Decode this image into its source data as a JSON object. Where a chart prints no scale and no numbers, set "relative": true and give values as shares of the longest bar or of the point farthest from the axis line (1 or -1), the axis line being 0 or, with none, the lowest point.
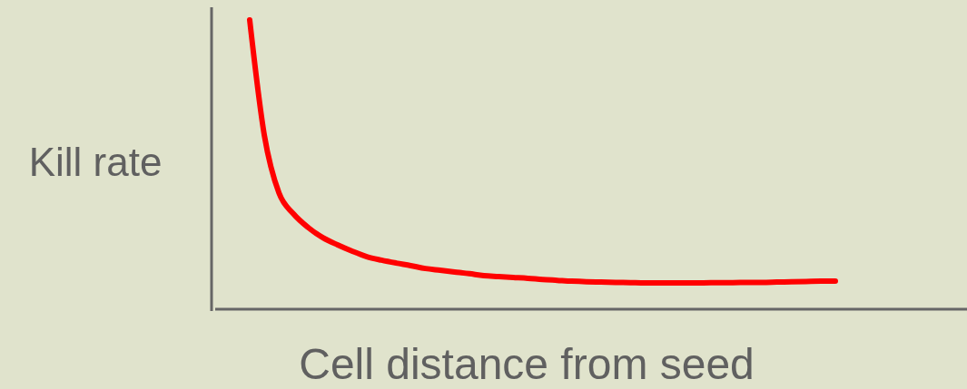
{
  "chart_data": {
    "type": "line",
    "relative": true,
    "xlabel": "Cell distance from seed",
    "ylabel": "Kill rate",
    "categories": [
      null,
      null,
      null,
      null,
      null,
      null,
      null,
      null,
      null,
      null,
      null,
      null,
      null,
      null,
      null,
      null,
      null,
      null,
      null,
      null,
      null,
      null,
      null,
      null,
      null,
      null,
      null,
      null,
      null,
      null,
      null,
      null,
      null,
      null,
      null,
      null,
      null,
      null,
      null,
      null,
      null
    ],
    "series": [
      {
        "color": "#ff0000",
        "values": [
          1,
          0.6,
          0.4,
          0.327,
          0.28,
          0.245,
          0.22,
          0.198,
          0.179,
          0.167,
          0.157,
          0.148,
          0.138,
          0.132,
          0.126,
          0.12,
          0.113,
          0.11,
          0.107,
          0.104,
          0.1,
          0.097,
          0.094,
          0.092,
          0.091,
          0.09,
          0.089,
          0.088,
          0.088,
          0.088,
          0.088,
          0.088,
          0.089,
          0.089,
          0.09,
          0.09,
          0.091,
          0.092,
          0.093,
          0.094,
          0.094
        ]
      }
    ],
    "marker": "none",
    "line_style": "solid"
  }
}
